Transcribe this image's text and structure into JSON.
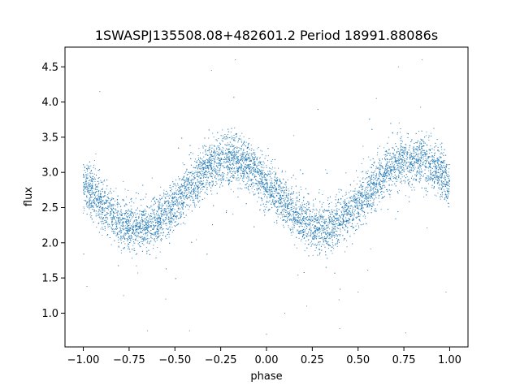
{
  "chart_data": {
    "type": "scatter",
    "title": "1SWASPJ135508.08+482601.2 Period 18991.88086s",
    "xlabel": "phase",
    "ylabel": "flux",
    "xlim": [
      -1.1,
      1.1
    ],
    "ylim": [
      0.52,
      4.78
    ],
    "xticks": [
      -1.0,
      -0.75,
      -0.5,
      -0.25,
      0.0,
      0.25,
      0.5,
      0.75,
      1.0
    ],
    "xtick_labels": [
      "−1.00",
      "−0.75",
      "−0.50",
      "−0.25",
      "0.00",
      "0.25",
      "0.50",
      "0.75",
      "1.00"
    ],
    "yticks": [
      1.0,
      1.5,
      2.0,
      2.5,
      3.0,
      3.5,
      4.0,
      4.5
    ],
    "ytick_labels": [
      "1.0",
      "1.5",
      "2.0",
      "2.5",
      "3.0",
      "3.5",
      "4.0",
      "4.5"
    ],
    "grid": false,
    "point_color": "#1f77b4",
    "series": [
      {
        "phase_range": [
          -1.0,
          1.0
        ],
        "mean_flux": 2.7,
        "amplitude": 0.48,
        "period_in_phase": 1.0,
        "min_phase": [
          -0.7,
          0.3
        ],
        "max_phase": [
          -0.2,
          0.8
        ],
        "scatter": 0.17,
        "outlier_points": [
          {
            "x": -0.91,
            "y": 4.15
          },
          {
            "x": -0.78,
            "y": 1.25
          },
          {
            "x": -0.65,
            "y": 0.75
          },
          {
            "x": -0.42,
            "y": 0.75
          },
          {
            "x": -0.17,
            "y": 4.6
          },
          {
            "x": 0.0,
            "y": 0.7
          },
          {
            "x": 0.1,
            "y": 1.0
          },
          {
            "x": 0.4,
            "y": 0.78
          },
          {
            "x": 0.6,
            "y": 4.05
          },
          {
            "x": 0.76,
            "y": 0.72
          },
          {
            "x": 0.85,
            "y": 4.6
          },
          {
            "x": -0.98,
            "y": 1.38
          },
          {
            "x": 0.98,
            "y": 1.3
          },
          {
            "x": 0.72,
            "y": 4.5
          },
          {
            "x": -0.3,
            "y": 4.45
          },
          {
            "x": 0.22,
            "y": 1.1
          },
          {
            "x": -0.55,
            "y": 1.2
          },
          {
            "x": 0.5,
            "y": 1.3
          }
        ]
      }
    ]
  }
}
